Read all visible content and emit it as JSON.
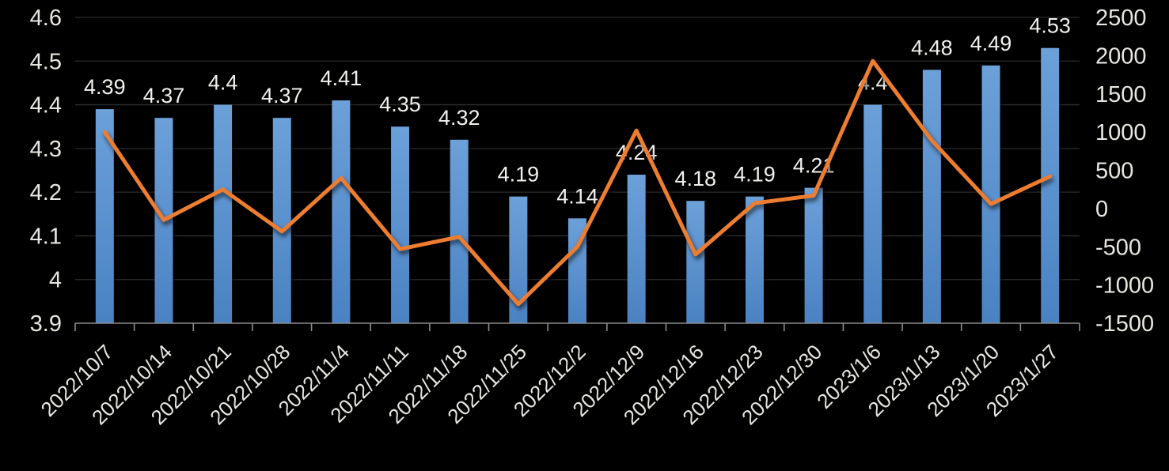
{
  "chart_data": {
    "type": "bar",
    "subtype": "combo-bar-line-dual-axis",
    "title": "",
    "xlabel": "",
    "ylabel": "",
    "legend": "none",
    "grid": true,
    "categories": [
      "2022/10/7",
      "2022/10/14",
      "2022/10/21",
      "2022/10/28",
      "2022/11/4",
      "2022/11/11",
      "2022/11/18",
      "2022/11/25",
      "2022/12/2",
      "2022/12/9",
      "2022/12/16",
      "2022/12/23",
      "2022/12/30",
      "2023/1/6",
      "2023/1/13",
      "2023/1/20",
      "2023/1/27"
    ],
    "series": [
      {
        "type": "bar",
        "axis": "left",
        "values": [
          4.39,
          4.37,
          4.4,
          4.37,
          4.41,
          4.35,
          4.32,
          4.19,
          4.14,
          4.24,
          4.18,
          4.19,
          4.21,
          4.4,
          4.48,
          4.49,
          4.53
        ],
        "labels": [
          "4.39",
          "4.37",
          "4.4",
          "4.37",
          "4.41",
          "4.35",
          "4.32",
          "4.19",
          "4.14",
          "4.24",
          "4.18",
          "4.19",
          "4.21",
          "4.4",
          "4.48",
          "4.49",
          "4.53"
        ],
        "color_top": "#6CA0D9",
        "color_bottom": "#4A82C2"
      },
      {
        "type": "line",
        "axis": "right",
        "values": [
          1000,
          -150,
          250,
          -300,
          400,
          -530,
          -370,
          -1250,
          -500,
          1020,
          -600,
          70,
          170,
          1930,
          890,
          60,
          420
        ],
        "color": "#ED7D31"
      }
    ],
    "left_axis": {
      "min": 3.9,
      "max": 4.6,
      "step": 0.1,
      "tick_labels": [
        "4.6",
        "4.5",
        "4.4",
        "4.3",
        "4.2",
        "4.1",
        "4",
        "3.9"
      ]
    },
    "right_axis": {
      "min": -1500,
      "max": 2500,
      "step": 500,
      "tick_labels": [
        "2500",
        "2000",
        "1500",
        "1000",
        "500",
        "0",
        "-500",
        "-1000",
        "-1500"
      ]
    },
    "colors": {
      "background": "#000000",
      "gridline": "#2D2D2D",
      "axis_line": "#8C8C8C",
      "tick_label": "#E8E6E1",
      "data_label": "#F1F0ED",
      "bar_top": "#6CA0D9",
      "bar_bottom": "#4A82C2",
      "line": "#ED7D31"
    }
  }
}
